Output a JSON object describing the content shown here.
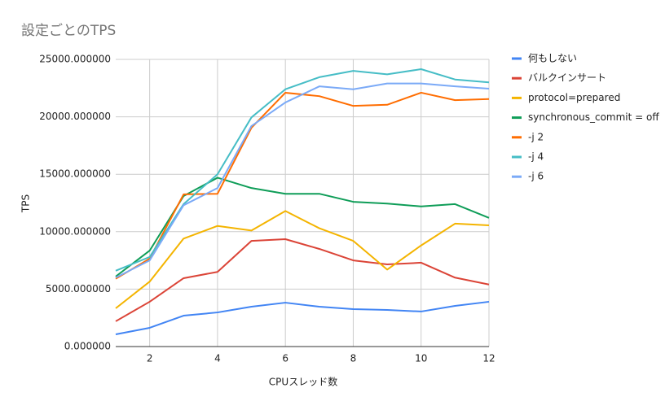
{
  "chart_data": {
    "type": "line",
    "title": "設定ごとのTPS",
    "x_label": "CPUスレッド数",
    "y_label": "TPS",
    "x": [
      1,
      2,
      3,
      4,
      5,
      6,
      7,
      8,
      9,
      10,
      11,
      12
    ],
    "xlim": [
      1,
      12
    ],
    "xticks": [
      2,
      4,
      6,
      8,
      10,
      12
    ],
    "ylim": [
      0,
      25000
    ],
    "yticks": [
      {
        "value": 0,
        "label": "0.000000"
      },
      {
        "value": 5000,
        "label": "5000.000000"
      },
      {
        "value": 10000,
        "label": "10000.000000"
      },
      {
        "value": 15000,
        "label": "15000.000000"
      },
      {
        "value": 20000,
        "label": "20000.000000"
      },
      {
        "value": 25000,
        "label": "25000.000000"
      }
    ],
    "grid": true,
    "legend": "right",
    "series": [
      {
        "name": "何もしない",
        "color": "#4285f4",
        "values": [
          1060,
          1630,
          2690,
          2970,
          3470,
          3820,
          3470,
          3260,
          3190,
          3050,
          3540,
          3900
        ]
      },
      {
        "name": "バルクインサート",
        "color": "#db4437",
        "values": [
          2200,
          3900,
          5950,
          6500,
          9200,
          9350,
          8500,
          7500,
          7150,
          7300,
          6000,
          5400
        ]
      },
      {
        "name": "protocol=prepared",
        "color": "#f4b400",
        "values": [
          3330,
          5650,
          9400,
          10500,
          10100,
          11800,
          10300,
          9200,
          6700,
          8800,
          10700,
          10550
        ]
      },
      {
        "name": "synchronous_commit = off",
        "color": "#0f9d58",
        "values": [
          6100,
          8350,
          13100,
          14700,
          13800,
          13300,
          13300,
          12600,
          12450,
          12200,
          12400,
          11200
        ]
      },
      {
        "name": "-j 2",
        "color": "#ff6d01",
        "values": [
          5900,
          7650,
          13250,
          13300,
          19050,
          22100,
          21800,
          20950,
          21050,
          22100,
          21450,
          21550
        ]
      },
      {
        "name": "-j 4",
        "color": "#46bdc6",
        "values": [
          6600,
          7800,
          12400,
          15000,
          19950,
          22400,
          23450,
          24000,
          23700,
          24150,
          23250,
          23000
        ]
      },
      {
        "name": "-j 6",
        "color": "#7baaf7",
        "values": [
          6000,
          7500,
          12300,
          13800,
          19200,
          21250,
          22650,
          22400,
          22900,
          22900,
          22650,
          22450
        ]
      }
    ]
  }
}
